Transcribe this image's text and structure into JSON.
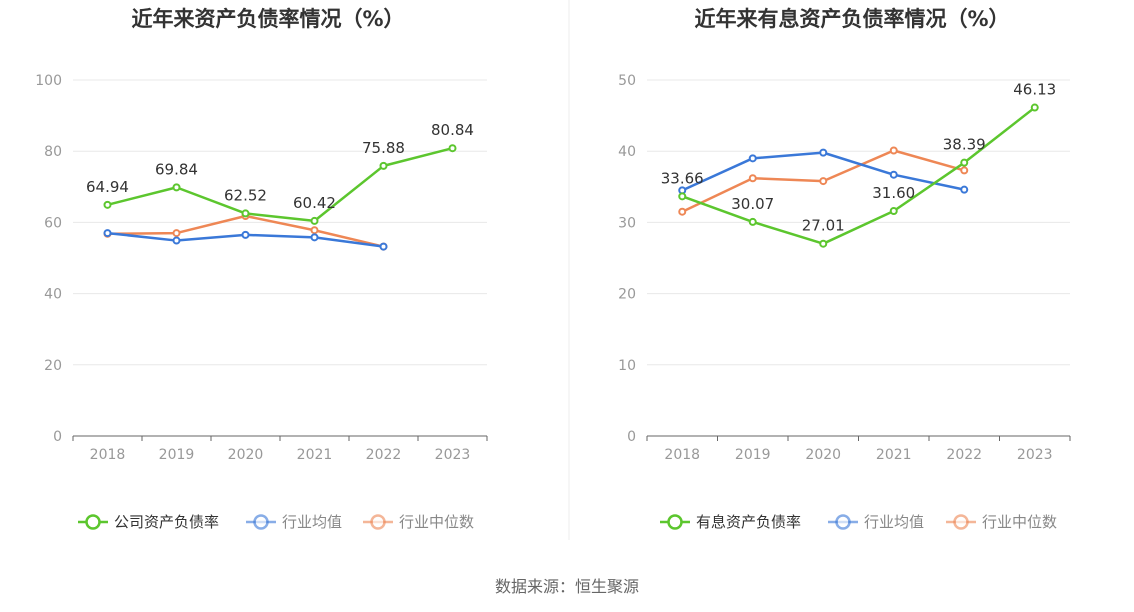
{
  "source_note": "数据来源：恒生聚源",
  "colors": {
    "company": "#5CC62E",
    "avg": "#3A78D8",
    "median": "#EE8755",
    "grid": "#E8E8E8",
    "axis": "#666666"
  },
  "chart_data": [
    {
      "type": "line",
      "title": "近年来资产负债率情况（%）",
      "categories": [
        "2018",
        "2019",
        "2020",
        "2021",
        "2022",
        "2023"
      ],
      "ylim": [
        0,
        100
      ],
      "yticks": [
        "0",
        "20",
        "40",
        "60",
        "80",
        "100"
      ],
      "grid": true,
      "legend_position": "bottom",
      "series": [
        {
          "key": "company",
          "name": "公司资产负债率",
          "values": [
            64.94,
            69.84,
            62.52,
            60.42,
            75.88,
            80.84
          ],
          "labels": [
            "64.94",
            "69.84",
            "62.52",
            "60.42",
            "75.88",
            "80.84"
          ]
        },
        {
          "key": "avg",
          "name": "行业均值",
          "values": [
            57.0,
            54.9,
            56.5,
            55.8,
            53.2,
            null
          ]
        },
        {
          "key": "median",
          "name": "行业中位数",
          "values": [
            56.8,
            57.0,
            61.8,
            57.8,
            53.2,
            null
          ]
        }
      ]
    },
    {
      "type": "line",
      "title": "近年来有息资产负债率情况（%）",
      "categories": [
        "2018",
        "2019",
        "2020",
        "2021",
        "2022",
        "2023"
      ],
      "ylim": [
        0,
        50
      ],
      "yticks": [
        "0",
        "10",
        "20",
        "30",
        "40",
        "50"
      ],
      "grid": true,
      "legend_position": "bottom",
      "series": [
        {
          "key": "company",
          "name": "有息资产负债率",
          "values": [
            33.66,
            30.07,
            27.01,
            31.6,
            38.39,
            46.13
          ],
          "labels": [
            "33.66",
            "30.07",
            "27.01",
            "31.60",
            "38.39",
            "46.13"
          ]
        },
        {
          "key": "avg",
          "name": "行业均值",
          "values": [
            34.5,
            39.0,
            39.8,
            36.7,
            34.6,
            null
          ]
        },
        {
          "key": "median",
          "name": "行业中位数",
          "values": [
            31.5,
            36.2,
            35.8,
            40.1,
            37.3,
            null
          ]
        }
      ]
    }
  ]
}
